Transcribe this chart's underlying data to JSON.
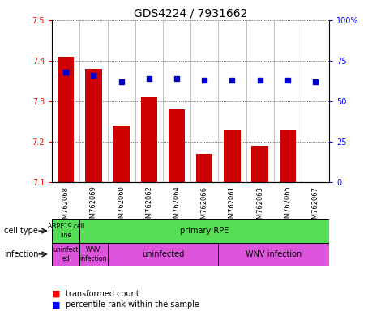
{
  "title": "GDS4224 / 7931662",
  "samples": [
    "GSM762068",
    "GSM762069",
    "GSM762060",
    "GSM762062",
    "GSM762064",
    "GSM762066",
    "GSM762061",
    "GSM762063",
    "GSM762065",
    "GSM762067"
  ],
  "transformed_counts": [
    7.41,
    7.38,
    7.24,
    7.31,
    7.28,
    7.17,
    7.23,
    7.19,
    7.23,
    7.1
  ],
  "percentile_ranks": [
    68,
    66,
    62,
    64,
    64,
    63,
    63,
    63,
    63,
    62
  ],
  "ylim_left": [
    7.1,
    7.5
  ],
  "ylim_right": [
    0,
    100
  ],
  "yticks_left": [
    7.1,
    7.2,
    7.3,
    7.4,
    7.5
  ],
  "yticks_right": [
    0,
    25,
    50,
    75,
    100
  ],
  "ytick_labels_right": [
    "0",
    "25",
    "50",
    "75",
    "100%"
  ],
  "bar_color": "#cc0000",
  "dot_color": "#0000cc",
  "bar_bottom": 7.1,
  "green_color": "#55dd55",
  "magenta_color": "#dd55dd",
  "tick_fontsize": 7,
  "title_fontsize": 10,
  "sample_fontsize": 6,
  "annot_fontsize": 7,
  "small_annot_fontsize": 5.5
}
